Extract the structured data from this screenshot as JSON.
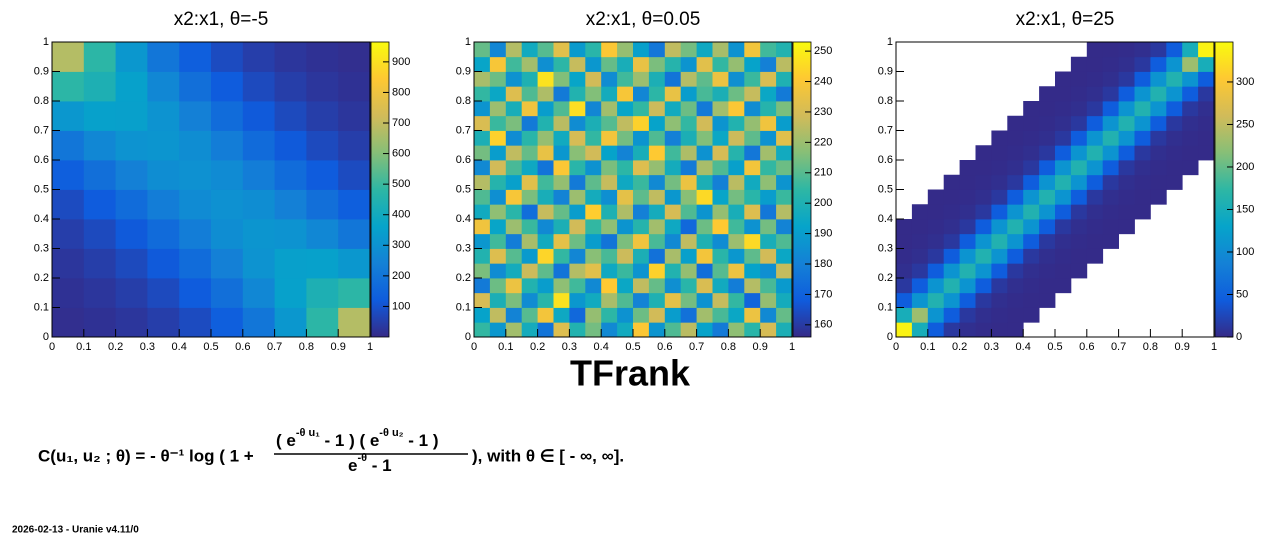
{
  "chart_data": [
    {
      "type": "heatmap",
      "title": "x2:x1, θ=-5",
      "xbins": [
        0,
        0.1,
        0.2,
        0.3,
        0.4,
        0.5,
        0.6,
        0.7,
        0.8,
        0.9,
        1
      ],
      "ybins": [
        0,
        0.1,
        0.2,
        0.3,
        0.4,
        0.5,
        0.6,
        0.7,
        0.8,
        0.9,
        1
      ],
      "values": [
        [
          11,
          18,
          30,
          49,
          80,
          129,
          205,
          318,
          476,
          676
        ],
        [
          18,
          30,
          48,
          77,
          120,
          182,
          263,
          353,
          434,
          476
        ],
        [
          30,
          48,
          76,
          117,
          172,
          238,
          303,
          348,
          353,
          318
        ],
        [
          49,
          77,
          117,
          169,
          228,
          282,
          311,
          303,
          263,
          205
        ],
        [
          80,
          120,
          172,
          228,
          276,
          296,
          282,
          238,
          182,
          129
        ],
        [
          129,
          182,
          238,
          282,
          296,
          276,
          228,
          172,
          120,
          80
        ],
        [
          205,
          263,
          303,
          311,
          282,
          228,
          169,
          117,
          77,
          49
        ],
        [
          318,
          353,
          348,
          303,
          238,
          172,
          117,
          76,
          48,
          30
        ],
        [
          476,
          434,
          353,
          263,
          182,
          120,
          77,
          48,
          30,
          18
        ],
        [
          676,
          476,
          318,
          205,
          129,
          80,
          49,
          30,
          18,
          11
        ]
      ],
      "xlim": [
        0,
        1
      ],
      "ylim": [
        0,
        1
      ],
      "xticks": [
        0,
        0.1,
        0.2,
        0.3,
        0.4,
        0.5,
        0.6,
        0.7,
        0.8,
        0.9,
        1
      ],
      "yticks": [
        0,
        0.1,
        0.2,
        0.3,
        0.4,
        0.5,
        0.6,
        0.7,
        0.8,
        0.9,
        1
      ],
      "zlim": [
        0,
        965
      ],
      "zticks": [
        100,
        200,
        300,
        400,
        500,
        600,
        700,
        800,
        900
      ],
      "draw_zero": false,
      "palette": [
        "#352a87",
        "#0f5cdd",
        "#1481d6",
        "#06a4ca",
        "#2eb7a4",
        "#87bf77",
        "#d1bb59",
        "#fec832",
        "#f9fb0e"
      ]
    },
    {
      "type": "heatmap",
      "title": "x2:x1, θ=0.05",
      "xbins": [
        0,
        0.05,
        0.1,
        0.15,
        0.2,
        0.25,
        0.3,
        0.35,
        0.4,
        0.45,
        0.5,
        0.55,
        0.6,
        0.65,
        0.7,
        0.75,
        0.8,
        0.85,
        0.9,
        0.95,
        1
      ],
      "ybins": [
        0,
        0.05,
        0.1,
        0.15,
        0.2,
        0.25,
        0.3,
        0.35,
        0.4,
        0.45,
        0.5,
        0.55,
        0.6,
        0.65,
        0.7,
        0.75,
        0.8,
        0.85,
        0.9,
        0.95,
        1
      ],
      "values": [
        [
          205,
          188,
          221,
          197,
          176,
          232,
          201,
          214,
          183,
          196,
          240,
          187,
          209,
          225,
          192,
          178,
          218,
          203,
          230,
          199
        ],
        [
          192,
          226,
          181,
          210,
          238,
          195,
          172,
          219,
          204,
          186,
          213,
          229,
          190,
          175,
          221,
          208,
          194,
          236,
          183,
          212
        ],
        [
          230,
          199,
          215,
          184,
          203,
          247,
          188,
          196,
          222,
          209,
          181,
          200,
          234,
          214,
          186,
          227,
          205,
          171,
          219,
          197
        ],
        [
          178,
          213,
          236,
          201,
          190,
          218,
          207,
          183,
          241,
          194,
          226,
          212,
          185,
          203,
          231,
          196,
          179,
          224,
          208,
          189
        ],
        [
          215,
          184,
          197,
          228,
          211,
          176,
          224,
          233,
          195,
          206,
          187,
          243,
          201,
          219,
          174,
          210,
          236,
          192,
          185,
          227
        ],
        [
          201,
          232,
          210,
          189,
          244,
          205,
          182,
          217,
          208,
          228,
          199,
          175,
          222,
          191,
          238,
          203,
          188,
          211,
          229,
          194
        ],
        [
          188,
          207,
          179,
          222,
          196,
          234,
          213,
          190,
          176,
          215,
          237,
          208,
          183,
          226,
          200,
          184,
          220,
          245,
          198,
          209
        ],
        [
          237,
          193,
          220,
          206,
          183,
          199,
          229,
          205,
          218,
          187,
          202,
          221,
          195,
          172,
          213,
          241,
          207,
          186,
          214,
          181
        ],
        [
          196,
          218,
          203,
          174,
          227,
          212,
          190,
          242,
          200,
          223,
          180,
          197,
          230,
          209,
          187,
          219,
          198,
          232,
          177,
          224
        ],
        [
          209,
          185,
          239,
          215,
          198,
          181,
          220,
          197,
          185,
          234,
          211,
          226,
          188,
          217,
          245,
          193,
          214,
          203,
          190,
          206
        ],
        [
          224,
          202,
          191,
          233,
          207,
          219,
          178,
          211,
          227,
          195,
          206,
          183,
          214,
          236,
          199,
          180,
          225,
          196,
          218,
          187
        ],
        [
          183,
          229,
          208,
          195,
          176,
          240,
          203,
          186,
          215,
          204,
          232,
          219,
          197,
          178,
          222,
          209,
          191,
          238,
          205,
          213
        ],
        [
          214,
          190,
          226,
          212,
          235,
          188,
          217,
          229,
          192,
          181,
          198,
          241,
          207,
          223,
          186,
          230,
          202,
          177,
          221,
          196
        ],
        [
          199,
          243,
          184,
          203,
          219,
          196,
          230,
          205,
          238,
          214,
          187,
          209,
          180,
          199,
          216,
          194,
          228,
          211,
          186,
          233
        ],
        [
          231,
          206,
          215,
          178,
          201,
          225,
          184,
          199,
          210,
          226,
          243,
          192,
          218,
          205,
          229,
          187,
          201,
          219,
          237,
          190
        ],
        [
          187,
          220,
          198,
          237,
          190,
          209,
          246,
          182,
          221,
          193,
          205,
          228,
          196,
          213,
          178,
          221,
          240,
          184,
          202,
          215
        ],
        [
          205,
          194,
          232,
          209,
          223,
          178,
          201,
          216,
          197,
          239,
          182,
          204,
          235,
          190,
          208,
          199,
          213,
          227,
          194,
          178
        ],
        [
          222,
          213,
          186,
          200,
          247,
          216,
          193,
          229,
          184,
          207,
          220,
          199,
          176,
          224,
          211,
          236,
          185,
          206,
          231,
          200
        ],
        [
          193,
          239,
          207,
          221,
          185,
          204,
          227,
          188,
          212,
          198,
          235,
          215,
          202,
          187,
          233,
          205,
          219,
          192,
          180,
          225
        ],
        [
          212,
          182,
          224,
          196,
          210,
          233,
          189,
          203,
          240,
          219,
          191,
          177,
          226,
          214,
          195,
          222,
          186,
          238,
          207,
          201
        ]
      ],
      "xlim": [
        0,
        1
      ],
      "ylim": [
        0,
        1
      ],
      "xticks": [
        0,
        0.1,
        0.2,
        0.3,
        0.4,
        0.5,
        0.6,
        0.7,
        0.8,
        0.9,
        1
      ],
      "yticks": [
        0,
        0.1,
        0.2,
        0.3,
        0.4,
        0.5,
        0.6,
        0.7,
        0.8,
        0.9,
        1
      ],
      "zlim": [
        156,
        253
      ],
      "zticks": [
        160,
        170,
        180,
        190,
        200,
        210,
        220,
        230,
        240,
        250
      ],
      "draw_zero": false,
      "palette": [
        "#352a87",
        "#0f5cdd",
        "#1481d6",
        "#06a4ca",
        "#2eb7a4",
        "#87bf77",
        "#d1bb59",
        "#fec832",
        "#f9fb0e"
      ]
    },
    {
      "type": "heatmap",
      "title": "x2:x1, θ=25",
      "xbins": [
        0,
        0.05,
        0.1,
        0.15,
        0.2,
        0.25,
        0.3,
        0.35,
        0.4,
        0.45,
        0.5,
        0.55,
        0.6,
        0.65,
        0.7,
        0.75,
        0.8,
        0.85,
        0.9,
        0.95,
        1
      ],
      "ybins": [
        0,
        0.05,
        0.1,
        0.15,
        0.2,
        0.25,
        0.3,
        0.35,
        0.4,
        0.45,
        0.5,
        0.55,
        0.6,
        0.65,
        0.7,
        0.75,
        0.8,
        0.85,
        0.9,
        0.95,
        1
      ],
      "values": [
        [
          340,
          150,
          45,
          12,
          4,
          2,
          1,
          1,
          0,
          0,
          0,
          0,
          0,
          0,
          0,
          0,
          0,
          0,
          0,
          0
        ],
        [
          150,
          230,
          110,
          45,
          12,
          4,
          2,
          1,
          1,
          0,
          0,
          0,
          0,
          0,
          0,
          0,
          0,
          0,
          0,
          0
        ],
        [
          45,
          110,
          160,
          110,
          45,
          12,
          4,
          2,
          1,
          1,
          0,
          0,
          0,
          0,
          0,
          0,
          0,
          0,
          0,
          0
        ],
        [
          12,
          45,
          110,
          160,
          110,
          45,
          12,
          4,
          2,
          1,
          1,
          0,
          0,
          0,
          0,
          0,
          0,
          0,
          0,
          0
        ],
        [
          4,
          12,
          45,
          110,
          160,
          110,
          45,
          12,
          4,
          2,
          1,
          1,
          0,
          0,
          0,
          0,
          0,
          0,
          0,
          0
        ],
        [
          2,
          4,
          12,
          45,
          110,
          160,
          110,
          45,
          12,
          4,
          2,
          1,
          1,
          0,
          0,
          0,
          0,
          0,
          0,
          0
        ],
        [
          1,
          2,
          4,
          12,
          45,
          110,
          160,
          110,
          45,
          12,
          4,
          2,
          1,
          1,
          0,
          0,
          0,
          0,
          0,
          0
        ],
        [
          1,
          1,
          2,
          4,
          12,
          45,
          110,
          160,
          110,
          45,
          12,
          4,
          2,
          1,
          1,
          0,
          0,
          0,
          0,
          0
        ],
        [
          0,
          1,
          1,
          2,
          4,
          12,
          45,
          110,
          160,
          110,
          45,
          12,
          4,
          2,
          1,
          1,
          0,
          0,
          0,
          0
        ],
        [
          0,
          0,
          1,
          1,
          2,
          4,
          12,
          45,
          110,
          160,
          110,
          45,
          12,
          4,
          2,
          1,
          1,
          0,
          0,
          0
        ],
        [
          0,
          0,
          0,
          1,
          1,
          2,
          4,
          12,
          45,
          110,
          160,
          110,
          45,
          12,
          4,
          2,
          1,
          1,
          0,
          0
        ],
        [
          0,
          0,
          0,
          0,
          1,
          1,
          2,
          4,
          12,
          45,
          110,
          160,
          110,
          45,
          12,
          4,
          2,
          1,
          1,
          0
        ],
        [
          0,
          0,
          0,
          0,
          0,
          1,
          1,
          2,
          4,
          12,
          45,
          110,
          160,
          110,
          45,
          12,
          4,
          2,
          1,
          1
        ],
        [
          0,
          0,
          0,
          0,
          0,
          0,
          1,
          1,
          2,
          4,
          12,
          45,
          110,
          160,
          110,
          45,
          12,
          4,
          2,
          1
        ],
        [
          0,
          0,
          0,
          0,
          0,
          0,
          0,
          1,
          1,
          2,
          4,
          12,
          45,
          110,
          160,
          110,
          45,
          12,
          4,
          2
        ],
        [
          0,
          0,
          0,
          0,
          0,
          0,
          0,
          0,
          1,
          1,
          2,
          4,
          12,
          45,
          110,
          160,
          110,
          45,
          12,
          4
        ],
        [
          0,
          0,
          0,
          0,
          0,
          0,
          0,
          0,
          0,
          1,
          1,
          2,
          4,
          12,
          45,
          110,
          160,
          110,
          45,
          12
        ],
        [
          0,
          0,
          0,
          0,
          0,
          0,
          0,
          0,
          0,
          0,
          1,
          1,
          2,
          4,
          12,
          45,
          110,
          160,
          110,
          45
        ],
        [
          0,
          0,
          0,
          0,
          0,
          0,
          0,
          0,
          0,
          0,
          0,
          1,
          1,
          2,
          4,
          12,
          45,
          110,
          230,
          150
        ],
        [
          0,
          0,
          0,
          0,
          0,
          0,
          0,
          0,
          0,
          0,
          0,
          0,
          1,
          1,
          2,
          4,
          12,
          45,
          150,
          340
        ]
      ],
      "xlim": [
        0,
        1
      ],
      "ylim": [
        0,
        1
      ],
      "xticks": [
        0,
        0.1,
        0.2,
        0.3,
        0.4,
        0.5,
        0.6,
        0.7,
        0.8,
        0.9,
        1
      ],
      "yticks": [
        0,
        0.1,
        0.2,
        0.3,
        0.4,
        0.5,
        0.6,
        0.7,
        0.8,
        0.9,
        1
      ],
      "zlim": [
        0,
        347
      ],
      "zticks": [
        0,
        50,
        100,
        150,
        200,
        250,
        300
      ],
      "draw_zero": false,
      "palette": [
        "#352a87",
        "#0f5cdd",
        "#1481d6",
        "#06a4ca",
        "#2eb7a4",
        "#87bf77",
        "#d1bb59",
        "#fec832",
        "#f9fb0e"
      ]
    }
  ],
  "heading": "TFrank",
  "formula": {
    "left": "C(u₁, u₂ ; θ) = - θ⁻¹ log ( 1 +",
    "numerator": [
      "( e",
      "-θ u₁",
      " - 1 ) ( e",
      "-θ u₂",
      " - 1 )"
    ],
    "denominator": [
      "e",
      "-θ",
      " - 1"
    ],
    "right": "), with θ ∈ [ - ∞, ∞]."
  },
  "footer": "2026-02-13 - Uranie v4.11/0"
}
